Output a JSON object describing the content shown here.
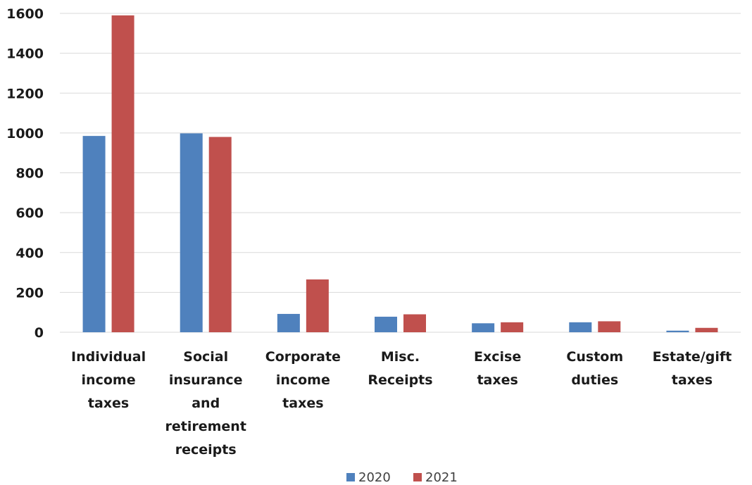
{
  "chart_data": {
    "type": "bar",
    "categories": [
      [
        "Individual",
        "income",
        "taxes"
      ],
      [
        "Social",
        "insurance",
        "and",
        "retirement",
        "receipts"
      ],
      [
        "Corporate",
        "income",
        "taxes"
      ],
      [
        "Misc.",
        "Receipts"
      ],
      [
        "Excise",
        "taxes"
      ],
      [
        "Custom",
        "duties"
      ],
      [
        "Estate/gift",
        "taxes"
      ]
    ],
    "series": [
      {
        "name": "2020",
        "color": "#4f81bd",
        "values": [
          985,
          998,
          92,
          78,
          45,
          50,
          8
        ]
      },
      {
        "name": "2021",
        "color": "#c0504d",
        "values": [
          1590,
          980,
          265,
          90,
          50,
          55,
          22
        ]
      }
    ],
    "yticks": [
      "0",
      "200",
      "400",
      "600",
      "800",
      "1000",
      "1200",
      "1400",
      "1600"
    ],
    "ylim": [
      0,
      1600
    ],
    "grid": true,
    "legend_position": "bottom"
  }
}
